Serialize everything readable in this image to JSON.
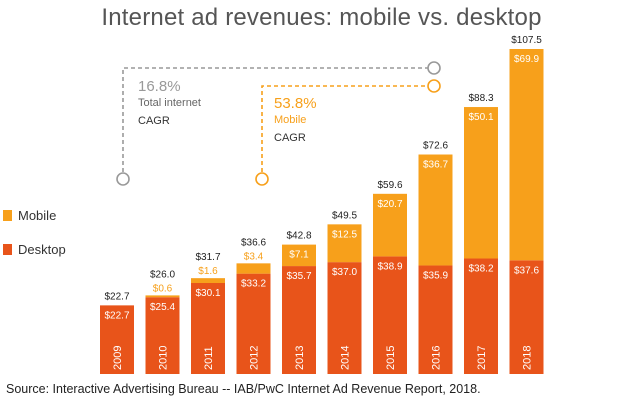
{
  "chart_data": {
    "type": "bar",
    "stacked": true,
    "title": "Internet ad revenues: mobile vs. desktop",
    "categories": [
      "2009",
      "2010",
      "2011",
      "2012",
      "2013",
      "2014",
      "2015",
      "2016",
      "2017",
      "2018"
    ],
    "series": [
      {
        "name": "Desktop",
        "color": "#e8541a",
        "values": [
          22.7,
          25.4,
          30.1,
          33.2,
          35.7,
          37.0,
          38.9,
          35.9,
          38.2,
          37.6
        ],
        "labels": [
          "$22.7",
          "$25.4",
          "$30.1",
          "$33.2",
          "$35.7",
          "$37.0",
          "$38.9",
          "$35.9",
          "$38.2",
          "$37.6"
        ]
      },
      {
        "name": "Mobile",
        "color": "#f7a01b",
        "values": [
          0,
          0.6,
          1.6,
          3.4,
          7.1,
          12.5,
          20.7,
          36.7,
          50.1,
          69.9
        ],
        "labels": [
          "",
          "$0.6",
          "$1.6",
          "$3.4",
          "$7.1",
          "$12.5",
          "$20.7",
          "$36.7",
          "$50.1",
          "$69.9"
        ]
      }
    ],
    "totals": [
      22.7,
      26.0,
      31.7,
      36.6,
      42.8,
      49.5,
      59.6,
      72.6,
      88.3,
      107.5
    ],
    "total_labels": [
      "$22.7",
      "$26.0",
      "$31.7",
      "$36.6",
      "$42.8",
      "$49.5",
      "$59.6",
      "$72.6",
      "$88.3",
      "$107.5"
    ],
    "legend": [
      {
        "name": "Mobile",
        "color": "#f7a01b"
      },
      {
        "name": "Desktop",
        "color": "#e8541a"
      }
    ],
    "legend_placement": "left",
    "grid": false,
    "annotations": [
      {
        "value": "16.8%",
        "line1": "Total internet",
        "line2": "CAGR",
        "color": "#999999"
      },
      {
        "value": "53.8%",
        "line1": "Mobile",
        "line2": "CAGR",
        "color": "#f7a01b"
      }
    ]
  },
  "source": "Source: Interactive Advertising Bureau -- IAB/PwC Internet Ad Revenue Report, 2018."
}
